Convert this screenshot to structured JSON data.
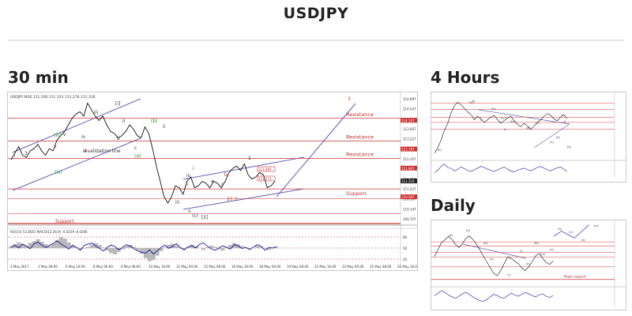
{
  "page": {
    "title": "USDJPY",
    "sections": {
      "m30": "30 min",
      "h4": "4 Hours",
      "daily": "Daily"
    }
  },
  "chart_data": [
    {
      "id": "m30",
      "type": "line",
      "header": "USDJPY,M30 111.200 111.323 111.276 111.316",
      "x_labels": [
        "2 May 2017",
        "3 May 08:00",
        "4 May 16:00",
        "8 May 00:00",
        "9 May 08:00",
        "10 May 16:00",
        "12 May 00:00",
        "15 May 08:00",
        "16 May 16:00",
        "18 May 00:00",
        "19 May 08:00",
        "22 May 16:00",
        "24 May 00:00",
        "25 May 08:00",
        "26 May 16:00"
      ],
      "y_labels": [
        "114.987",
        "114.547",
        "114.107",
        "113.667",
        "113.227",
        "112.787",
        "112.347",
        "111.907",
        "111.467",
        "111.027",
        "110.587",
        "110.147",
        "109.707"
      ],
      "ylim": [
        109.5,
        115.1
      ],
      "price": [
        112.3,
        112.6,
        112.9,
        112.5,
        112.4,
        112.7,
        112.8,
        113.0,
        112.7,
        112.5,
        112.8,
        112.7,
        113.2,
        113.4,
        113.6,
        113.9,
        114.2,
        114.4,
        114.5,
        114.3,
        114.9,
        114.6,
        114.3,
        114.1,
        114.3,
        113.9,
        113.6,
        113.5,
        113.3,
        113.4,
        113.6,
        113.9,
        113.7,
        113.4,
        113.3,
        113.8,
        113.5,
        112.8,
        112.0,
        111.3,
        110.6,
        110.3,
        110.6,
        111.1,
        111.0,
        110.7,
        111.3,
        111.5,
        111.0,
        111.1,
        111.3,
        111.2,
        111.0,
        111.3,
        111.2,
        111.0,
        111.3,
        111.7,
        111.9,
        112.0,
        111.8,
        112.1,
        111.6,
        111.4,
        111.5,
        111.7,
        111.6,
        111.0,
        111.1,
        111.3
      ],
      "resistance": [
        {
          "label": "Resistance",
          "value": 114.2
        },
        {
          "label": "Resistance",
          "value": 113.15
        },
        {
          "label": "Resistance",
          "value": 112.35
        }
      ],
      "support": [
        {
          "label": "Support",
          "value": 110.95
        }
      ],
      "other_levels": [
        110.5,
        109.8
      ],
      "price_tags": [
        "114.107",
        "112.787",
        "111.907",
        "111.316",
        "110.587"
      ],
      "tags_boxed": [
        "111.869",
        "111.274"
      ],
      "wave_labels": [
        "[i]",
        "iii",
        "(iii)",
        "iv",
        "(iv)",
        "v",
        "ii",
        "i",
        "a",
        "b",
        "c",
        "(b)",
        "(a)",
        "ii",
        "iii",
        "iv",
        "1",
        "2?",
        "2",
        "i",
        "ii",
        "(c)",
        "v",
        "[ii]",
        "a",
        "b",
        "c",
        "3",
        "4",
        "3"
      ],
      "annotations": [
        "invalidation line",
        "Support"
      ],
      "indicator": {
        "header": "RSI(14) 53.8561 MACD(12,26,9) -0.0219 -0.0266",
        "scale": [
          "80",
          "50",
          "20"
        ],
        "rsi": [
          52,
          58,
          50,
          61,
          55,
          48,
          62,
          66,
          58,
          51,
          57,
          63,
          69,
          61,
          55,
          47,
          58,
          52,
          44,
          57,
          61,
          64,
          56,
          49,
          42,
          52,
          58,
          54,
          46,
          52,
          59,
          55,
          48,
          42,
          38,
          36,
          45,
          34,
          42,
          52,
          58,
          49,
          55,
          62,
          51,
          45,
          53,
          57,
          50,
          60,
          64,
          55,
          48,
          44,
          50,
          56,
          52,
          47,
          59,
          56,
          49,
          52,
          46,
          53,
          59,
          55,
          44,
          52,
          50,
          54
        ],
        "macd": [
          0.06,
          0.12,
          0.18,
          0.14,
          0.08,
          0.16,
          0.22,
          0.28,
          0.2,
          0.12,
          0.06,
          0.14,
          0.26,
          0.34,
          0.3,
          0.18,
          0.08,
          0.02,
          -0.06,
          -0.02,
          0.04,
          0.12,
          0.16,
          0.1,
          0.02,
          -0.08,
          -0.16,
          -0.2,
          -0.12,
          -0.04,
          0.06,
          0.1,
          0.04,
          -0.06,
          -0.18,
          -0.32,
          -0.42,
          -0.38,
          -0.24,
          -0.1,
          0.02,
          0.1,
          0.14,
          0.08,
          0.02,
          -0.04,
          0.04,
          0.1,
          0.06,
          0.0,
          -0.06,
          0.02,
          0.08,
          0.04,
          -0.04,
          -0.08,
          0.02,
          0.1,
          0.16,
          0.12,
          0.06,
          0.02,
          -0.04,
          0.0,
          0.06,
          0.04,
          -0.02,
          -0.06,
          0.02,
          0.04
        ]
      }
    },
    {
      "id": "h4",
      "type": "line",
      "price": [
        108.8,
        109.4,
        110.3,
        111.4,
        112.2,
        113.4,
        114.2,
        114.6,
        114.3,
        113.9,
        113.5,
        113.2,
        112.6,
        113.0,
        112.7,
        112.3,
        112.6,
        112.9,
        113.1,
        112.6,
        112.2,
        112.5,
        112.8,
        113.0,
        112.5,
        112.1,
        111.8,
        112.2,
        111.9,
        111.5,
        111.9,
        112.3,
        112.6,
        113.0,
        113.3,
        113.1,
        112.7,
        112.5,
        112.9,
        113.2,
        112.7
      ],
      "ylim": [
        108.5,
        115
      ],
      "levels": [
        114.5,
        113.8,
        112.9,
        112.3,
        111.5
      ],
      "wave_labels": [
        "(ii)",
        "(iii)",
        "ii",
        "iii",
        "(iv)",
        "(a)",
        "(b)",
        "(c)",
        "(ii)",
        "iv",
        "(iii)",
        "(iv)",
        "ii",
        "v",
        "[ii]"
      ],
      "indicator": {
        "rsi": [
          40,
          48,
          62,
          70,
          58,
          55,
          46,
          52,
          60,
          54,
          48,
          44,
          50,
          56,
          62,
          58,
          52,
          48,
          44,
          50,
          55,
          60,
          52,
          46,
          42,
          48,
          52,
          56,
          50,
          47,
          52,
          58,
          62,
          56,
          50,
          46,
          52,
          57,
          60,
          52,
          44
        ]
      }
    },
    {
      "id": "daily",
      "type": "line",
      "price": [
        113.5,
        115.2,
        116.8,
        117.5,
        118.3,
        117.6,
        116.4,
        115.6,
        116.6,
        117.8,
        118.4,
        117.6,
        116.5,
        115.1,
        113.6,
        112.2,
        110.8,
        109.4,
        108.9,
        110.1,
        111.8,
        113.4,
        113.0,
        112.4,
        111.8,
        110.8,
        110.1,
        111.0,
        112.2,
        113.6,
        114.2,
        113.1,
        112.1,
        111.6,
        112.4
      ],
      "ylim": [
        107,
        121
      ],
      "projection": [
        [
          0.67,
          0.25
        ],
        [
          0.71,
          0.17
        ],
        [
          0.78,
          0.28
        ],
        [
          0.86,
          0.07
        ]
      ],
      "levels": [
        117.0,
        116.0,
        114.5,
        113.4,
        111.0
      ],
      "wave_labels": [
        "(4)",
        "(5)",
        "(b)",
        "(a)",
        "(c)",
        "(i)",
        "(ii)",
        "(iii)",
        "(iv)",
        "(v)",
        "(3)",
        "(iii)",
        "(ii)",
        "(iv)"
      ],
      "annotations": [
        "Major support"
      ],
      "indicator": {
        "rsi": [
          52,
          60,
          68,
          62,
          54,
          48,
          44,
          50,
          58,
          62,
          56,
          48,
          42,
          36,
          34,
          40,
          48,
          56,
          52,
          46,
          44,
          52,
          60,
          54,
          50,
          56,
          62,
          58,
          52,
          48,
          54,
          58,
          50,
          46,
          52
        ]
      }
    }
  ],
  "colors": {
    "price": "#111111",
    "level": "#cc3333",
    "channel": "#6060b8",
    "label_red": "#b8322e",
    "label_green": "#2f8f2f",
    "label_gray": "#333333",
    "rsi": "#1a1aa0",
    "macd": "#b9b9b9",
    "projection": "#4a4ab8"
  }
}
